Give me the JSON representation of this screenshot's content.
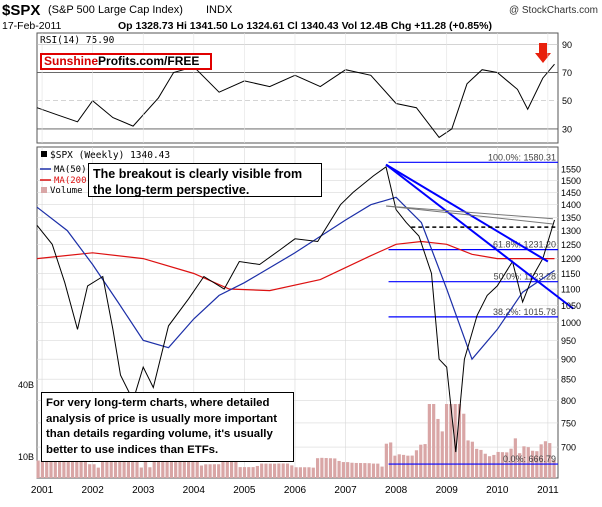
{
  "header": {
    "symbol": "$SPX",
    "name": "(S&P 500 Large Cap Index)",
    "exchange": "INDX",
    "date": "17-Feb-2011",
    "quote": "Op 1328.73  Hi 1341.50  Lo 1324.61  Cl 1340.43  Vol 12.4B  Chg +11.28 (+0.85%)",
    "credit": "@ StockCharts.com"
  },
  "banner": {
    "part1": "Sunshine",
    "part2": "Profits.com/FREE"
  },
  "rsi_panel": {
    "label": "RSI(14) 75.90",
    "ticks": [
      30,
      50,
      70,
      90
    ],
    "current": 75.9
  },
  "price_panel": {
    "legend": {
      "main": "$SPX (Weekly) 1340.43",
      "ma50": "MA(50)",
      "ma200": "MA(200)",
      "volume": "Volume"
    },
    "volume_ticks": [
      "40B",
      "10B"
    ],
    "fib_labels": [
      "100.0%: 1580.31",
      "61.8%: 1231.20",
      "50.0%: 1123.28",
      "38.2%: 1015.78",
      "0.0%: 666.79"
    ]
  },
  "annotations": {
    "breakout": "The breakout is clearly visible from the long-term perspective.",
    "longterm": "For very long-term charts, where detailed analysis of price is usually more important than details regarding volume, it's usually better to use indices than ETFs."
  },
  "colors": {
    "price_up": "#000000",
    "price_down": "#cc0000",
    "ma50": "#1c2fa8",
    "ma200": "#dd1111",
    "trendline": "#0000ff",
    "volume": "#d9a6a6",
    "arrow": "#e8200c"
  },
  "chart_data": {
    "type": "line",
    "title": "$SPX (S&P 500 Large Cap Index) INDX",
    "x_axis": {
      "labels": [
        "2001",
        "2002",
        "2003",
        "2004",
        "2005",
        "2006",
        "2007",
        "2008",
        "2009",
        "2010",
        "2011"
      ],
      "range": [
        2000.9,
        2011.2
      ]
    },
    "y_axis": {
      "scale": "log",
      "range": [
        650,
        1600
      ],
      "ticks": [
        700,
        750,
        800,
        850,
        900,
        950,
        1000,
        1050,
        1100,
        1150,
        1200,
        1250,
        1300,
        1350,
        1400,
        1450,
        1500,
        1550
      ]
    },
    "series": [
      {
        "name": "$SPX (Weekly)",
        "x": [
          2000.9,
          2001.2,
          2001.45,
          2001.7,
          2001.9,
          2002.2,
          2002.4,
          2002.55,
          2002.8,
          2003.0,
          2003.2,
          2003.5,
          2003.9,
          2004.2,
          2004.6,
          2004.9,
          2005.3,
          2005.7,
          2006.0,
          2006.45,
          2006.9,
          2007.15,
          2007.55,
          2007.8,
          2008.0,
          2008.2,
          2008.45,
          2008.7,
          2008.85,
          2009.0,
          2009.18,
          2009.35,
          2009.6,
          2009.8,
          2010.0,
          2010.3,
          2010.5,
          2010.7,
          2010.9,
          2011.13
        ],
        "y": [
          1320,
          1250,
          1120,
          980,
          1110,
          1140,
          980,
          860,
          800,
          880,
          830,
          990,
          1070,
          1140,
          1100,
          1190,
          1180,
          1230,
          1270,
          1260,
          1400,
          1450,
          1520,
          1560,
          1380,
          1330,
          1280,
          1150,
          900,
          880,
          690,
          900,
          1020,
          1080,
          1110,
          1190,
          1060,
          1140,
          1200,
          1340
        ]
      },
      {
        "name": "MA(50)",
        "x": [
          2000.9,
          2001.5,
          2002.0,
          2002.5,
          2003.0,
          2003.5,
          2004.0,
          2004.5,
          2005.0,
          2006.0,
          2007.0,
          2007.5,
          2008.0,
          2008.5,
          2009.0,
          2009.5,
          2010.0,
          2010.5,
          2011.13
        ],
        "y": [
          1390,
          1300,
          1180,
          1060,
          950,
          930,
          1010,
          1080,
          1120,
          1220,
          1340,
          1400,
          1430,
          1330,
          1100,
          900,
          980,
          1090,
          1160
        ]
      },
      {
        "name": "MA(200)",
        "x": [
          2000.9,
          2002.0,
          2003.0,
          2004.0,
          2004.7,
          2005.5,
          2006.5,
          2007.5,
          2008.0,
          2008.5,
          2009.0,
          2009.5,
          2010.0,
          2010.5,
          2011.13
        ],
        "y": [
          1200,
          1220,
          1200,
          1150,
          1100,
          1095,
          1130,
          1210,
          1250,
          1260,
          1250,
          1215,
          1200,
          1200,
          1200
        ]
      }
    ],
    "rsi": {
      "x": [
        2000.9,
        2001.3,
        2001.7,
        2002.0,
        2002.4,
        2002.8,
        2003.3,
        2003.6,
        2004.0,
        2004.5,
        2005.0,
        2005.5,
        2006.0,
        2006.5,
        2007.0,
        2007.5,
        2008.0,
        2008.4,
        2008.85,
        2009.1,
        2009.4,
        2009.7,
        2010.0,
        2010.4,
        2010.6,
        2010.9,
        2011.13
      ],
      "y": [
        45,
        40,
        35,
        50,
        38,
        32,
        52,
        70,
        74,
        56,
        64,
        60,
        68,
        60,
        72,
        68,
        48,
        45,
        24,
        30,
        62,
        72,
        70,
        58,
        44,
        66,
        75.9
      ]
    },
    "reference_lines": [
      {
        "label": "100.0%: 1580.31",
        "value": 1580.31
      },
      {
        "label": "61.8%: 1231.20",
        "value": 1231.2
      },
      {
        "label": "50.0%: 1123.28",
        "value": 1123.28
      },
      {
        "label": "38.2%: 1015.78",
        "value": 1015.78
      },
      {
        "label": "0.0%: 666.79",
        "value": 666.79
      }
    ],
    "breakout_level": 1313,
    "trendlines": [
      {
        "points": [
          [
            2007.8,
            1570
          ],
          [
            2011.5,
            1040
          ]
        ]
      },
      {
        "points": [
          [
            2007.8,
            1570
          ],
          [
            2011.0,
            1190
          ]
        ]
      },
      {
        "points": [
          [
            2007.8,
            1395
          ],
          [
            2011.1,
            1325
          ]
        ]
      },
      {
        "points": [
          [
            2007.8,
            1395
          ],
          [
            2011.1,
            1345
          ]
        ]
      }
    ]
  }
}
